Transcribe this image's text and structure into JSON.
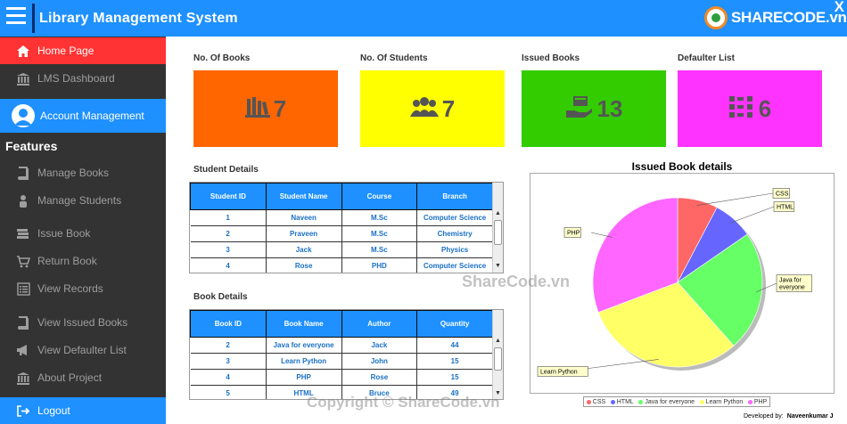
{
  "header": {
    "title": "Library Management System",
    "close_label": "X",
    "logo_text": "SHARECODE.vn"
  },
  "sidebar": {
    "items_top": [
      {
        "label": "Home Page",
        "icon": "home-icon"
      },
      {
        "label": "LMS Dashboard",
        "icon": "bank-icon"
      }
    ],
    "account": {
      "label": "Account Management",
      "icon": "user-avatar-icon"
    },
    "features_heading": "Features",
    "features": [
      {
        "label": "Manage Books",
        "icon": "book-icon"
      },
      {
        "label": "Manage Students",
        "icon": "person-icon"
      },
      {
        "label": "Issue Book",
        "icon": "book-stack-icon"
      },
      {
        "label": "Return Book",
        "icon": "cart-icon"
      },
      {
        "label": "View Records",
        "icon": "list-icon"
      },
      {
        "label": "View Issued Books",
        "icon": "book-icon"
      },
      {
        "label": "View Defaulter List",
        "icon": "megaphone-icon"
      },
      {
        "label": "About Project",
        "icon": "bank-icon"
      }
    ],
    "logout": {
      "label": "Logout",
      "icon": "logout-icon"
    }
  },
  "stats": [
    {
      "label": "No. Of Books",
      "value": "7",
      "color": "#ff6600",
      "icon": "books-icon"
    },
    {
      "label": "No. Of Students",
      "value": "7",
      "color": "#ffff00",
      "icon": "people-icon"
    },
    {
      "label": "Issued Books",
      "value": "13",
      "color": "#33cc00",
      "icon": "hand-book-icon"
    },
    {
      "label": "Defaulter List",
      "value": "6",
      "color": "#ff33ff",
      "icon": "grid-list-icon"
    }
  ],
  "student_details": {
    "title": "Student Details",
    "columns": [
      "Student ID",
      "Student Name",
      "Course",
      "Branch"
    ],
    "rows": [
      [
        "1",
        "Naveen",
        "M.Sc",
        "Computer Science"
      ],
      [
        "2",
        "Praveen",
        "M.Sc",
        "Chemistry"
      ],
      [
        "3",
        "Jack",
        "M.Sc",
        "Physics"
      ],
      [
        "4",
        "Rose",
        "PHD",
        "Computer Science"
      ]
    ]
  },
  "book_details": {
    "title": "Book Details",
    "columns": [
      "Book ID",
      "Book Name",
      "Author",
      "Quantity"
    ],
    "rows": [
      [
        "2",
        "Java for everyone",
        "Jack",
        "44"
      ],
      [
        "3",
        "Learn Python",
        "John",
        "15"
      ],
      [
        "4",
        "PHP",
        "Rose",
        "15"
      ],
      [
        "5",
        "HTML",
        "Bruce",
        "49"
      ]
    ]
  },
  "chart_data": {
    "type": "pie",
    "title": "Issued Book details",
    "categories": [
      "CSS",
      "HTML",
      "Java for everyone",
      "Learn Python",
      "PHP"
    ],
    "values": [
      1,
      1,
      3,
      4,
      4
    ],
    "colors": [
      "#ff6666",
      "#6666ff",
      "#66ff66",
      "#ffff66",
      "#ff66ff"
    ],
    "legend": "bottom"
  },
  "footer": {
    "developed_by_label": "Developed by:",
    "developer": "Naveenkumar J"
  },
  "watermarks": {
    "center": "ShareCode.vn",
    "bottom": "Copyright © ShareCode.vn"
  }
}
